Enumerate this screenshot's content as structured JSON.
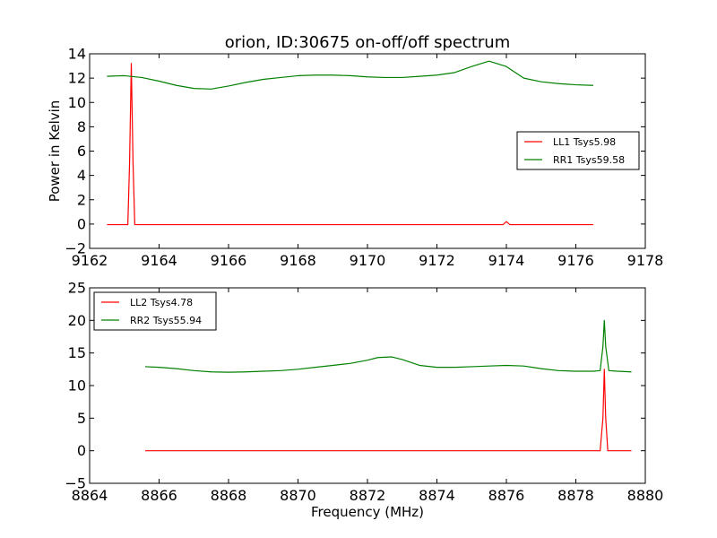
{
  "chart_data": [
    {
      "type": "line",
      "title": "orion, ID:30675 on-off/off spectrum",
      "ylabel": "Power in Kelvin",
      "xlabel": "",
      "xlim": [
        9162,
        9178
      ],
      "ylim": [
        -2,
        14
      ],
      "xticks": [
        "9162",
        "9164",
        "9166",
        "9168",
        "9170",
        "9172",
        "9174",
        "9176",
        "9178"
      ],
      "yticks": [
        "−2",
        "0",
        "2",
        "4",
        "6",
        "8",
        "10",
        "12",
        "14"
      ],
      "legend_position": "right",
      "grid": false,
      "series": [
        {
          "name": "LL1 Tsys5.98",
          "color": "#ff0000",
          "x": [
            9162.5,
            9163.1,
            9163.15,
            9163.2,
            9163.25,
            9163.3,
            9164.0,
            9166.0,
            9168.0,
            9170.0,
            9172.0,
            9173.9,
            9174.0,
            9174.1,
            9176.5
          ],
          "y": [
            -0.05,
            -0.05,
            5.0,
            13.2,
            5.0,
            -0.05,
            -0.05,
            -0.05,
            -0.05,
            -0.05,
            -0.05,
            -0.05,
            0.2,
            -0.05,
            -0.05
          ]
        },
        {
          "name": "RR1 Tsys59.58",
          "color": "#008000",
          "x": [
            9162.5,
            9163.0,
            9163.5,
            9164.0,
            9164.5,
            9165.0,
            9165.5,
            9166.0,
            9166.5,
            9167.0,
            9167.5,
            9168.0,
            9168.5,
            9169.0,
            9169.5,
            9170.0,
            9170.5,
            9171.0,
            9171.5,
            9172.0,
            9172.5,
            9173.0,
            9173.5,
            9174.0,
            9174.5,
            9175.0,
            9175.5,
            9176.0,
            9176.5
          ],
          "y": [
            12.15,
            12.2,
            12.05,
            11.75,
            11.4,
            11.15,
            11.1,
            11.35,
            11.65,
            11.9,
            12.05,
            12.2,
            12.25,
            12.25,
            12.2,
            12.1,
            12.05,
            12.05,
            12.15,
            12.25,
            12.45,
            12.95,
            13.4,
            12.95,
            12.0,
            11.7,
            11.55,
            11.45,
            11.4
          ]
        }
      ]
    },
    {
      "type": "line",
      "title": "",
      "ylabel": "",
      "xlabel": "Frequency (MHz)",
      "xlim": [
        8864,
        8880
      ],
      "ylim": [
        -5,
        25
      ],
      "xticks": [
        "8864",
        "8866",
        "8868",
        "8870",
        "8872",
        "8874",
        "8876",
        "8878",
        "8880"
      ],
      "yticks": [
        "−5",
        "0",
        "5",
        "10",
        "15",
        "20",
        "25"
      ],
      "legend_position": "upper left",
      "grid": false,
      "series": [
        {
          "name": "LL2 Tsys4.78",
          "color": "#ff0000",
          "x": [
            8865.6,
            8870.0,
            8875.0,
            8878.7,
            8878.78,
            8878.82,
            8878.86,
            8878.92,
            8879.6
          ],
          "y": [
            0.0,
            0.0,
            0.0,
            0.0,
            5.0,
            12.5,
            5.0,
            0.0,
            0.0
          ]
        },
        {
          "name": "RR2 Tsys55.94",
          "color": "#008000",
          "x": [
            8865.6,
            8866.0,
            8866.5,
            8867.0,
            8867.5,
            8868.0,
            8868.5,
            8869.0,
            8869.5,
            8870.0,
            8870.5,
            8871.0,
            8871.5,
            8872.0,
            8872.3,
            8872.7,
            8873.0,
            8873.5,
            8874.0,
            8874.5,
            8875.0,
            8875.5,
            8876.0,
            8876.5,
            8877.0,
            8877.5,
            8878.0,
            8878.5,
            8878.7,
            8878.78,
            8878.82,
            8878.86,
            8878.95,
            8879.2,
            8879.6
          ],
          "y": [
            12.9,
            12.8,
            12.6,
            12.3,
            12.1,
            12.05,
            12.1,
            12.2,
            12.3,
            12.5,
            12.8,
            13.1,
            13.4,
            13.9,
            14.3,
            14.4,
            14.0,
            13.1,
            12.8,
            12.8,
            12.9,
            13.0,
            13.1,
            13.0,
            12.6,
            12.3,
            12.2,
            12.2,
            12.3,
            16.0,
            20.0,
            16.0,
            12.3,
            12.2,
            12.1
          ]
        }
      ]
    }
  ]
}
